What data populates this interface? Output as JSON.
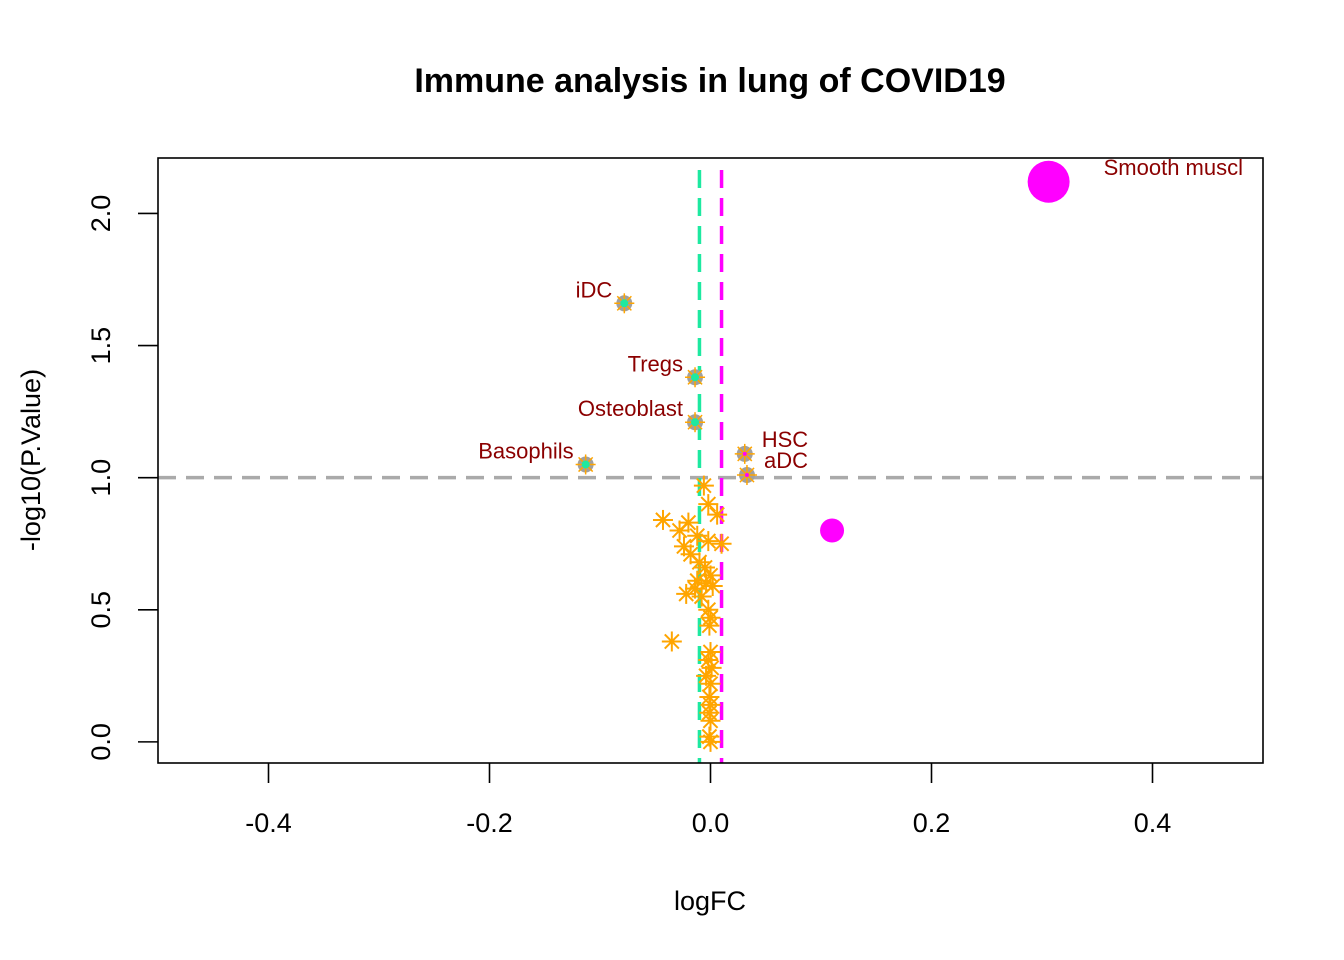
{
  "chart_data": {
    "type": "scatter",
    "title": "Immune analysis in lung of COVID19",
    "xlabel": "logFC",
    "ylabel": "-log10(P.Value)",
    "xlim": [
      -0.5,
      0.5
    ],
    "ylim": [
      -0.08,
      2.21
    ],
    "xticks": [
      -0.4,
      -0.2,
      0.0,
      0.2,
      0.4
    ],
    "xtick_labels": [
      "-0.4",
      "-0.2",
      "0.0",
      "0.2",
      "0.4"
    ],
    "yticks": [
      0.0,
      0.5,
      1.0,
      1.5,
      2.0
    ],
    "ytick_labels": [
      "0.0",
      "0.5",
      "1.0",
      "1.5",
      "2.0"
    ],
    "reference_lines": {
      "horizontal": {
        "y": 1.0,
        "color": "#aaaaaa"
      },
      "vertical_left": {
        "x": -0.01,
        "color": "#1de9a0"
      },
      "vertical_right": {
        "x": 0.01,
        "color": "#ff00ff"
      }
    },
    "colors": {
      "up": "#ff00ff",
      "star": "#ffa500",
      "sig_fill": "#a0a0a0",
      "label": "#8b0000",
      "center_down": "#1de9a0",
      "center_up": "#ff00ff"
    },
    "labeled_points": [
      {
        "label": "Smooth muscl",
        "x": 0.306,
        "y": 2.12,
        "style": "up-large"
      },
      {
        "label": "iDC",
        "x": -0.078,
        "y": 1.66,
        "style": "sig-down"
      },
      {
        "label": "Tregs",
        "x": -0.014,
        "y": 1.38,
        "style": "sig-down"
      },
      {
        "label": "Osteoblast",
        "x": -0.014,
        "y": 1.21,
        "style": "sig-down"
      },
      {
        "label": "Basophils",
        "x": -0.113,
        "y": 1.05,
        "style": "sig-down"
      },
      {
        "label": "HSC",
        "x": 0.031,
        "y": 1.09,
        "style": "sig-up"
      },
      {
        "label": "aDC",
        "x": 0.033,
        "y": 1.01,
        "style": "sig-up"
      }
    ],
    "up_points": [
      {
        "x": 0.11,
        "y": 0.8
      }
    ],
    "nonsig_points": [
      {
        "x": -0.006,
        "y": 0.97
      },
      {
        "x": -0.002,
        "y": 0.9
      },
      {
        "x": 0.006,
        "y": 0.86
      },
      {
        "x": -0.043,
        "y": 0.84
      },
      {
        "x": -0.02,
        "y": 0.83
      },
      {
        "x": -0.028,
        "y": 0.8
      },
      {
        "x": -0.012,
        "y": 0.78
      },
      {
        "x": -0.024,
        "y": 0.74
      },
      {
        "x": 0.01,
        "y": 0.75
      },
      {
        "x": -0.002,
        "y": 0.76
      },
      {
        "x": -0.018,
        "y": 0.71
      },
      {
        "x": -0.01,
        "y": 0.68
      },
      {
        "x": -0.005,
        "y": 0.66
      },
      {
        "x": 0.0,
        "y": 0.63
      },
      {
        "x": -0.012,
        "y": 0.61
      },
      {
        "x": -0.004,
        "y": 0.6
      },
      {
        "x": -0.014,
        "y": 0.58
      },
      {
        "x": 0.002,
        "y": 0.59
      },
      {
        "x": -0.022,
        "y": 0.56
      },
      {
        "x": -0.008,
        "y": 0.55
      },
      {
        "x": -0.002,
        "y": 0.5
      },
      {
        "x": 0.0,
        "y": 0.47
      },
      {
        "x": -0.001,
        "y": 0.44
      },
      {
        "x": -0.035,
        "y": 0.38
      },
      {
        "x": 0.0,
        "y": 0.34
      },
      {
        "x": -0.002,
        "y": 0.31
      },
      {
        "x": 0.001,
        "y": 0.28
      },
      {
        "x": -0.004,
        "y": 0.25
      },
      {
        "x": 0.0,
        "y": 0.22
      },
      {
        "x": -0.001,
        "y": 0.17
      },
      {
        "x": 0.0,
        "y": 0.14
      },
      {
        "x": -0.001,
        "y": 0.11
      },
      {
        "x": 0.0,
        "y": 0.08
      },
      {
        "x": -0.001,
        "y": 0.02
      },
      {
        "x": 0.0,
        "y": 0.0
      }
    ]
  }
}
